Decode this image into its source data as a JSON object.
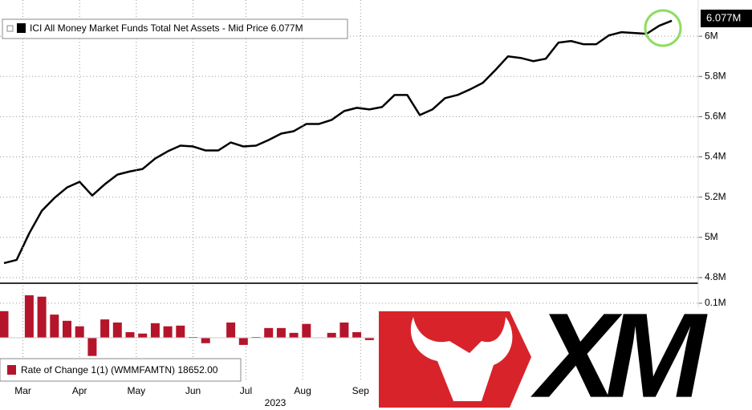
{
  "chart_data": [
    {
      "type": "line",
      "series": [
        {
          "name": "ICI All Money Market Funds Total Net Assets - Mid Price 6.077M",
          "color": "#000000",
          "values": [
            4.872,
            4.888,
            5.02,
            5.132,
            5.196,
            5.248,
            5.276,
            5.208,
            5.264,
            5.312,
            5.328,
            5.34,
            5.392,
            5.428,
            5.456,
            5.452,
            5.432,
            5.432,
            5.472,
            5.452,
            5.456,
            5.484,
            5.516,
            5.528,
            5.564,
            5.564,
            5.584,
            5.628,
            5.644,
            5.636,
            5.648,
            5.708,
            5.708,
            5.608,
            5.636,
            5.692,
            5.708,
            5.736,
            5.768,
            5.832,
            5.9,
            5.892,
            5.876,
            5.888,
            5.968,
            5.976,
            5.96,
            5.96,
            6.004,
            6.02,
            6.016,
            6.012,
            6.052,
            6.077
          ]
        }
      ],
      "last_label": "6.077M",
      "ylim": [
        4.776,
        6.18
      ],
      "yticks": [
        {
          "value": 4.8,
          "label": "4.8M"
        },
        {
          "value": 5,
          "label": "5M"
        },
        {
          "value": 5.2,
          "label": "5.2M"
        },
        {
          "value": 5.4,
          "label": "5.4M"
        },
        {
          "value": 5.6,
          "label": "5.6M"
        },
        {
          "value": 5.8,
          "label": "5.8M"
        },
        {
          "value": 6,
          "label": "6M"
        }
      ],
      "grid": true
    },
    {
      "type": "bar",
      "series": [
        {
          "name": "Rate of Change 1(1) (WMMFAMTN) 18652.00",
          "color": "#b5152b",
          "values": [
            0.077,
            0.0,
            0.123,
            0.119,
            0.067,
            0.049,
            0.033,
            -0.053,
            0.053,
            0.044,
            0.016,
            0.012,
            0.042,
            0.033,
            0.035,
            0.002,
            -0.016,
            0.0,
            0.044,
            -0.021,
            0.002,
            0.028,
            0.028,
            0.014,
            0.04,
            0.001,
            0.014,
            0.044,
            0.016,
            -0.007
          ]
        }
      ],
      "xticks": [
        {
          "value": 1.5,
          "label": "Mar"
        },
        {
          "value": 6,
          "label": "Apr"
        },
        {
          "value": 10.5,
          "label": "May"
        },
        {
          "value": 15,
          "label": "Jun"
        },
        {
          "value": 19.2,
          "label": "Jul"
        },
        {
          "value": 23.7,
          "label": "Aug"
        },
        {
          "value": 28.3,
          "label": "Sep"
        }
      ],
      "xlabel": "2023",
      "ylim": [
        -0.126,
        0.151
      ],
      "yticks": [
        {
          "value": 0.1,
          "label": "0.1M"
        }
      ],
      "grid": true
    }
  ],
  "logo": "XM"
}
